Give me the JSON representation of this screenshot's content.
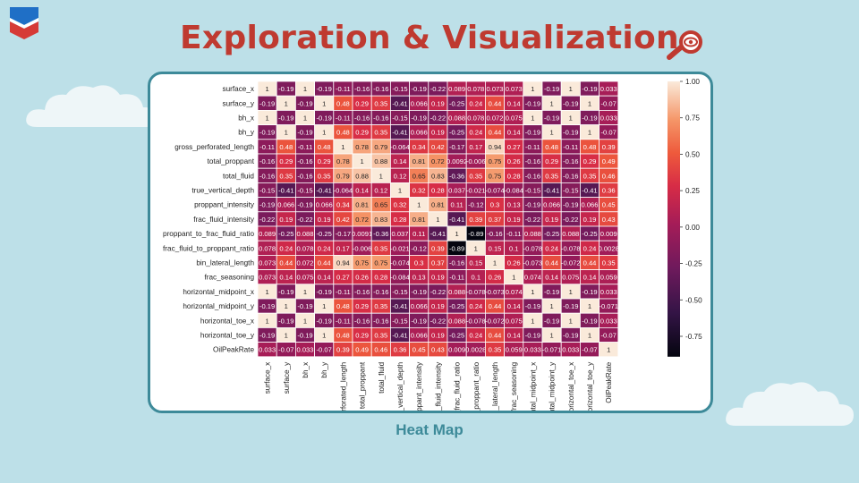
{
  "slide": {
    "title": "Exploration & Visualization",
    "caption": "Heat Map"
  },
  "icons": [
    "chevron-logo-icon",
    "magnifier-eye-icon",
    "cloud-icon"
  ],
  "colors": {
    "background": "#bde0e8",
    "title": "#bf3a30",
    "frame_border": "#3d8a99",
    "caption": "#3d8a99"
  },
  "chart_data": {
    "type": "heatmap",
    "title": "",
    "variables": [
      "surface_x",
      "surface_y",
      "bh_x",
      "bh_y",
      "gross_perforated_length",
      "total_proppant",
      "total_fluid",
      "true_vertical_depth",
      "proppant_intensity",
      "frac_fluid_intensity",
      "proppant_to_frac_fluid_ratio",
      "frac_fluid_to_proppant_ratio",
      "bin_lateral_length",
      "frac_seasoning",
      "horizontal_midpoint_x",
      "horizontal_midpoint_y",
      "horizontal_toe_x",
      "horizontal_toe_y",
      "OilPeakRate"
    ],
    "values": [
      [
        1,
        -0.19,
        1,
        -0.19,
        -0.11,
        -0.16,
        -0.16,
        -0.15,
        -0.19,
        -0.22,
        0.089,
        0.078,
        0.073,
        0.073,
        1,
        -0.19,
        1,
        -0.19,
        0.033
      ],
      [
        -0.19,
        1,
        -0.19,
        1,
        0.48,
        0.29,
        0.35,
        -0.41,
        0.066,
        0.19,
        -0.25,
        0.24,
        0.44,
        0.14,
        -0.19,
        1,
        -0.19,
        1,
        -0.07
      ],
      [
        1,
        -0.19,
        1,
        -0.19,
        -0.11,
        -0.16,
        -0.16,
        -0.15,
        -0.19,
        -0.22,
        0.088,
        0.078,
        0.072,
        0.075,
        1,
        -0.19,
        1,
        -0.19,
        0.033
      ],
      [
        -0.19,
        1,
        -0.19,
        1,
        0.48,
        0.29,
        0.35,
        -0.41,
        0.066,
        0.19,
        -0.25,
        0.24,
        0.44,
        0.14,
        -0.19,
        1,
        -0.19,
        1,
        -0.07
      ],
      [
        -0.11,
        0.48,
        -0.11,
        0.48,
        1,
        0.78,
        0.79,
        -0.064,
        0.34,
        0.42,
        -0.17,
        0.17,
        0.94,
        0.27,
        -0.11,
        0.48,
        -0.11,
        0.48,
        0.39
      ],
      [
        -0.16,
        0.29,
        -0.16,
        0.29,
        0.78,
        1,
        0.88,
        0.14,
        0.81,
        0.72,
        0.0092,
        -0.006,
        0.75,
        0.26,
        -0.16,
        0.29,
        -0.16,
        0.29,
        0.49
      ],
      [
        -0.16,
        0.35,
        -0.16,
        0.35,
        0.79,
        0.88,
        1,
        0.12,
        0.65,
        0.83,
        -0.36,
        0.35,
        0.75,
        0.28,
        -0.16,
        0.35,
        -0.16,
        0.35,
        0.46
      ],
      [
        -0.15,
        -0.41,
        -0.15,
        -0.41,
        -0.064,
        0.14,
        0.12,
        1,
        0.32,
        0.28,
        0.037,
        -0.021,
        -0.074,
        -0.084,
        -0.15,
        -0.41,
        -0.15,
        -0.41,
        0.36
      ],
      [
        -0.19,
        0.066,
        -0.19,
        0.066,
        0.34,
        0.81,
        0.65,
        0.32,
        1,
        0.81,
        0.11,
        -0.12,
        0.3,
        0.13,
        -0.19,
        0.066,
        -0.19,
        0.066,
        0.45
      ],
      [
        -0.22,
        0.19,
        -0.22,
        0.19,
        0.42,
        0.72,
        0.83,
        0.28,
        0.81,
        1,
        -0.41,
        0.39,
        0.37,
        0.19,
        -0.22,
        0.19,
        -0.22,
        0.19,
        0.43
      ],
      [
        0.089,
        -0.25,
        0.088,
        -0.25,
        -0.17,
        0.0091,
        -0.36,
        0.037,
        0.11,
        -0.41,
        1,
        -0.89,
        -0.16,
        -0.11,
        0.088,
        -0.25,
        0.088,
        -0.25,
        0.009
      ],
      [
        0.078,
        0.24,
        0.078,
        0.24,
        0.17,
        -0.006,
        0.35,
        -0.021,
        -0.12,
        0.39,
        -0.89,
        1,
        0.15,
        0.1,
        -0.078,
        0.24,
        -0.078,
        0.24,
        0.0028
      ],
      [
        0.073,
        0.44,
        0.072,
        0.44,
        0.94,
        0.75,
        0.75,
        -0.074,
        0.3,
        0.37,
        -0.16,
        0.15,
        1,
        0.26,
        -0.073,
        0.44,
        -0.072,
        0.44,
        0.35
      ],
      [
        0.073,
        0.14,
        0.075,
        0.14,
        0.27,
        0.26,
        0.28,
        -0.084,
        0.13,
        0.19,
        -0.11,
        0.1,
        0.26,
        1,
        0.074,
        0.14,
        0.075,
        0.14,
        0.059
      ],
      [
        1,
        -0.19,
        1,
        -0.19,
        -0.11,
        -0.16,
        -0.16,
        -0.15,
        -0.19,
        -0.22,
        0.088,
        -0.078,
        -0.073,
        0.074,
        1,
        -0.19,
        1,
        -0.19,
        0.033
      ],
      [
        -0.19,
        1,
        -0.19,
        1,
        0.48,
        0.29,
        0.35,
        -0.41,
        0.066,
        0.19,
        -0.25,
        0.24,
        0.44,
        0.14,
        -0.19,
        1,
        -0.19,
        1,
        -0.071
      ],
      [
        1,
        -0.19,
        1,
        -0.19,
        -0.11,
        -0.16,
        -0.16,
        -0.15,
        -0.19,
        -0.22,
        0.088,
        -0.078,
        -0.072,
        0.075,
        1,
        -0.19,
        1,
        -0.19,
        0.033
      ],
      [
        -0.19,
        1,
        -0.19,
        1,
        0.48,
        0.29,
        0.35,
        -0.41,
        0.066,
        0.19,
        -0.25,
        0.24,
        0.44,
        0.14,
        -0.19,
        1,
        -0.19,
        1,
        -0.07
      ],
      [
        0.033,
        -0.07,
        0.033,
        -0.07,
        0.39,
        0.49,
        0.46,
        0.36,
        0.45,
        0.43,
        0.009,
        0.0028,
        0.35,
        0.059,
        0.033,
        -0.071,
        0.033,
        -0.07,
        1
      ]
    ],
    "colorbar": {
      "range": [
        -0.89,
        1
      ],
      "ticks": [
        1.0,
        0.75,
        0.5,
        0.25,
        0.0,
        -0.25,
        -0.5,
        -0.75
      ],
      "tick_labels": [
        "1.00",
        "0.75",
        "0.50",
        "0.25",
        "0.00",
        "-0.25",
        "-0.50",
        "-0.75"
      ]
    },
    "cell_label_format": "2 significant digits",
    "colormap": "rocket",
    "legend_placement": "right"
  }
}
